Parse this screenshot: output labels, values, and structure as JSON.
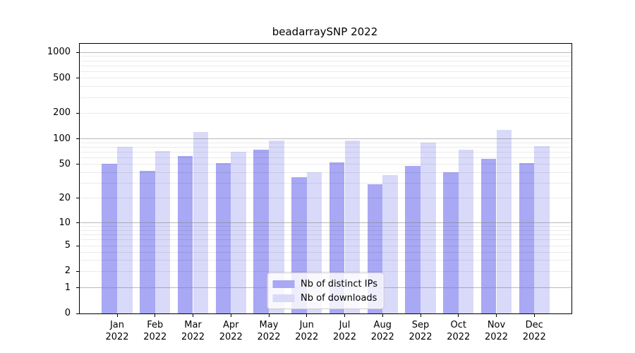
{
  "title": "beadarraySNP 2022",
  "chart_data": {
    "type": "bar",
    "title": "beadarraySNP 2022",
    "categories": [
      "Jan",
      "Feb",
      "Mar",
      "Apr",
      "May",
      "Jun",
      "Jul",
      "Aug",
      "Sep",
      "Oct",
      "Nov",
      "Dec"
    ],
    "x_tick_year": "2022",
    "series": [
      {
        "name": "Nb of distinct IPs",
        "color": "#a8a8f4",
        "values": [
          51,
          42,
          63,
          52,
          75,
          35,
          53,
          29,
          48,
          40,
          58,
          52
        ]
      },
      {
        "name": "Nb of downloads",
        "color": "#d9d9fa",
        "values": [
          80,
          72,
          120,
          70,
          96,
          40,
          96,
          37,
          90,
          74,
          128,
          82
        ]
      }
    ],
    "yticks": [
      0,
      1,
      2,
      5,
      10,
      20,
      50,
      100,
      200,
      500,
      1000
    ],
    "yscale": "log-like",
    "ylim": [
      0,
      1250
    ],
    "grid": "horizontal major and minor gridlines drawn over bars",
    "legend_position": "lower center"
  }
}
